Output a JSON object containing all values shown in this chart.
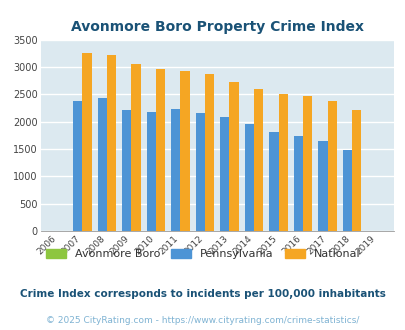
{
  "title": "Avonmore Boro Property Crime Index",
  "years": [
    2006,
    2007,
    2008,
    2009,
    2010,
    2011,
    2012,
    2013,
    2014,
    2015,
    2016,
    2017,
    2018,
    2019
  ],
  "pennsylvania": [
    null,
    2370,
    2430,
    2210,
    2180,
    2230,
    2160,
    2080,
    1960,
    1810,
    1730,
    1640,
    1490,
    null
  ],
  "national": [
    null,
    3260,
    3210,
    3050,
    2960,
    2920,
    2870,
    2720,
    2590,
    2500,
    2470,
    2380,
    2210,
    null
  ],
  "avonmore": [
    null,
    null,
    null,
    null,
    null,
    null,
    null,
    null,
    null,
    null,
    null,
    null,
    null,
    null
  ],
  "bar_color_penn": "#4d94d5",
  "bar_color_national": "#f5a623",
  "bar_color_avonmore": "#8dc63f",
  "background_color": "#dce9f0",
  "grid_color": "#ffffff",
  "title_color": "#1a5276",
  "ylim": [
    0,
    3500
  ],
  "yticks": [
    0,
    500,
    1000,
    1500,
    2000,
    2500,
    3000,
    3500
  ],
  "legend_labels": [
    "Avonmore Boro",
    "Pennsylvania",
    "National"
  ],
  "footnote1": "Crime Index corresponds to incidents per 100,000 inhabitants",
  "footnote2": "© 2025 CityRating.com - https://www.cityrating.com/crime-statistics/",
  "footnote1_color": "#1a5276",
  "footnote2_color": "#7fb3d3"
}
